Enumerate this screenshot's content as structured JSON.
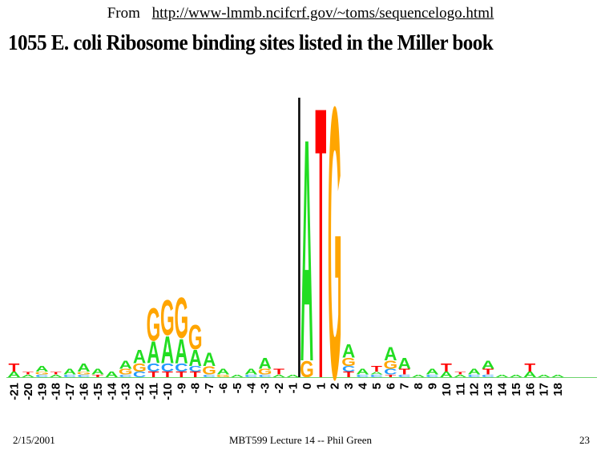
{
  "source": {
    "label": "From",
    "url": "http://www-lmmb.ncifcrf.gov/~toms/sequencelogo.html"
  },
  "title": "1055 E. coli Ribosome binding sites listed in the Miller book",
  "footer": {
    "date": "2/15/2001",
    "course": "MBT599 Lecture 14 -- Phil Green",
    "page": "23"
  },
  "colors": {
    "A": "#22dd22",
    "C": "#2299ff",
    "G": "#ffa500",
    "T": "#ff0000"
  },
  "chart_data": {
    "type": "sequence-logo",
    "positions": [
      -21,
      -20,
      -19,
      -18,
      -17,
      -16,
      -15,
      -14,
      -13,
      -12,
      -11,
      -10,
      -9,
      -8,
      -7,
      -6,
      -5,
      -4,
      -3,
      -2,
      -1,
      0,
      1,
      2,
      3,
      4,
      5,
      6,
      7,
      8,
      9,
      10,
      11,
      12,
      13,
      14,
      15,
      16,
      17,
      18
    ],
    "tick_labels": [
      "-21",
      "-20",
      "-19",
      "-18",
      "-17",
      "-16",
      "-15",
      "-14",
      "-13",
      "-12",
      "-11",
      "-10",
      "-9",
      "-8",
      "-7",
      "-6",
      "-5",
      "-4",
      "-3",
      "-2",
      "-1",
      "0",
      "1",
      "2",
      "3",
      "4",
      "5",
      "6",
      "7",
      "8",
      "9",
      "10",
      "11",
      "12",
      "13",
      "14",
      "15",
      "16",
      "17",
      "18"
    ],
    "stacks": [
      [
        [
          "A",
          0.02
        ],
        [
          "T",
          0.03
        ]
      ],
      [
        [
          "A",
          0.01
        ],
        [
          "T",
          0.01
        ]
      ],
      [
        [
          "C",
          0.01
        ],
        [
          "G",
          0.01
        ],
        [
          "A",
          0.02
        ]
      ],
      [
        [
          "A",
          0.01
        ],
        [
          "T",
          0.01
        ]
      ],
      [
        [
          "C",
          0.01
        ],
        [
          "A",
          0.02
        ]
      ],
      [
        [
          "C",
          0.01
        ],
        [
          "G",
          0.01
        ],
        [
          "A",
          0.03
        ]
      ],
      [
        [
          "T",
          0.01
        ],
        [
          "A",
          0.02
        ]
      ],
      [
        [
          "A",
          0.02
        ]
      ],
      [
        [
          "C",
          0.01
        ],
        [
          "G",
          0.02
        ],
        [
          "A",
          0.03
        ]
      ],
      [
        [
          "C",
          0.02
        ],
        [
          "G",
          0.03
        ],
        [
          "A",
          0.05
        ]
      ],
      [
        [
          "T",
          0.02
        ],
        [
          "C",
          0.03
        ],
        [
          "A",
          0.08
        ],
        [
          "G",
          0.12
        ]
      ],
      [
        [
          "T",
          0.02
        ],
        [
          "C",
          0.03
        ],
        [
          "A",
          0.1
        ],
        [
          "G",
          0.13
        ]
      ],
      [
        [
          "T",
          0.02
        ],
        [
          "C",
          0.03
        ],
        [
          "A",
          0.09
        ],
        [
          "G",
          0.15
        ]
      ],
      [
        [
          "T",
          0.02
        ],
        [
          "C",
          0.02
        ],
        [
          "A",
          0.06
        ],
        [
          "G",
          0.09
        ]
      ],
      [
        [
          "C",
          0.01
        ],
        [
          "G",
          0.03
        ],
        [
          "A",
          0.05
        ]
      ],
      [
        [
          "G",
          0.01
        ],
        [
          "A",
          0.02
        ]
      ],
      [
        [
          "A",
          0.01
        ]
      ],
      [
        [
          "C",
          0.01
        ],
        [
          "A",
          0.02
        ]
      ],
      [
        [
          "C",
          0.01
        ],
        [
          "G",
          0.02
        ],
        [
          "A",
          0.04
        ]
      ],
      [
        [
          "A",
          0.01
        ],
        [
          "T",
          0.02
        ]
      ],
      [
        [
          "A",
          0.01
        ]
      ],
      [
        [
          "G",
          0.06
        ],
        [
          "A",
          0.82
        ]
      ],
      [
        [
          "T",
          1.0
        ]
      ],
      [
        [
          "G",
          1.0
        ]
      ],
      [
        [
          "T",
          0.02
        ],
        [
          "C",
          0.02
        ],
        [
          "G",
          0.03
        ],
        [
          "A",
          0.05
        ]
      ],
      [
        [
          "C",
          0.01
        ],
        [
          "A",
          0.02
        ]
      ],
      [
        [
          "C",
          0.01
        ],
        [
          "A",
          0.01
        ],
        [
          "T",
          0.02
        ]
      ],
      [
        [
          "T",
          0.01
        ],
        [
          "C",
          0.02
        ],
        [
          "G",
          0.03
        ],
        [
          "A",
          0.05
        ]
      ],
      [
        [
          "C",
          0.01
        ],
        [
          "T",
          0.02
        ],
        [
          "A",
          0.04
        ]
      ],
      [
        [
          "A",
          0.01
        ]
      ],
      [
        [
          "C",
          0.01
        ],
        [
          "A",
          0.02
        ]
      ],
      [
        [
          "A",
          0.02
        ],
        [
          "T",
          0.03
        ]
      ],
      [
        [
          "A",
          0.01
        ],
        [
          "T",
          0.01
        ]
      ],
      [
        [
          "C",
          0.01
        ],
        [
          "A",
          0.02
        ]
      ],
      [
        [
          "C",
          0.01
        ],
        [
          "T",
          0.02
        ],
        [
          "A",
          0.03
        ]
      ],
      [
        [
          "A",
          0.01
        ]
      ],
      [
        [
          "A",
          0.01
        ]
      ],
      [
        [
          "A",
          0.02
        ],
        [
          "T",
          0.03
        ]
      ],
      [
        [
          "A",
          0.01
        ]
      ],
      [
        [
          "A",
          0.01
        ]
      ]
    ]
  }
}
